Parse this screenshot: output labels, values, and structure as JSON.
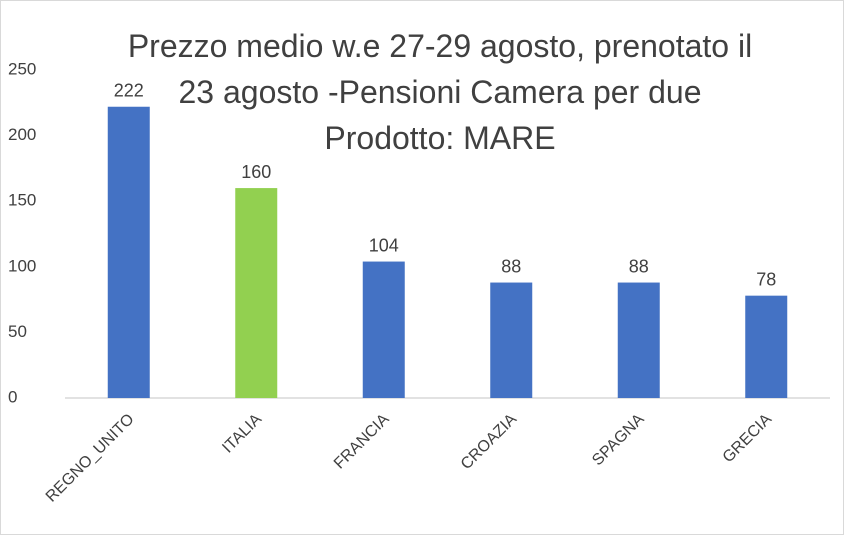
{
  "chart_data": {
    "type": "bar",
    "title": "Prezzo medio w.e 27-29 agosto, prenotato il 23 agosto -Pensioni Camera per due Prodotto: MARE",
    "categories": [
      "REGNO_UNITO",
      "ITALIA",
      "FRANCIA",
      "CROAZIA",
      "SPAGNA",
      "GRECIA"
    ],
    "values": [
      222,
      160,
      104,
      88,
      88,
      78
    ],
    "colors": [
      "#4472c4",
      "#92d050",
      "#4472c4",
      "#4472c4",
      "#4472c4",
      "#4472c4"
    ],
    "ylim": [
      0,
      250
    ],
    "yticks": [
      0,
      50,
      100,
      150,
      200,
      250
    ],
    "grid": false
  }
}
